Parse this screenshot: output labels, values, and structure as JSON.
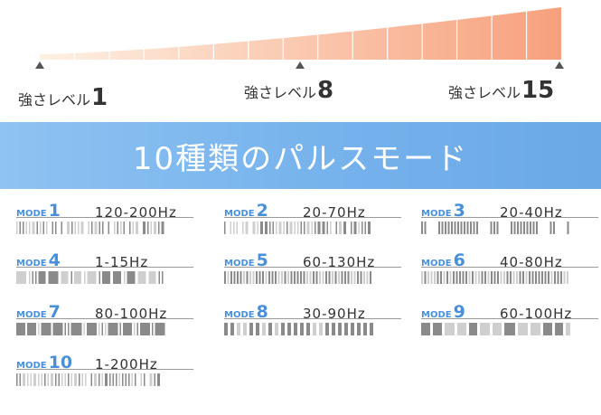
{
  "intensity": {
    "levels": [
      {
        "prefix": "強さレベル",
        "number": "1"
      },
      {
        "prefix": "強さレベル",
        "number": "8"
      },
      {
        "prefix": "強さレベル",
        "number": "15"
      }
    ],
    "max_level": 15,
    "colors": {
      "start": "#fdf1e3",
      "end": "#f7a07c",
      "marker": "#555555"
    }
  },
  "banner": {
    "title": "10種類のパルスモード"
  },
  "modes": [
    {
      "label": "MODE",
      "number": "1",
      "freq": "120-200Hz",
      "pattern": "fine-mixed"
    },
    {
      "label": "MODE",
      "number": "2",
      "freq": "20-70Hz",
      "pattern": "fine-mixed"
    },
    {
      "label": "MODE",
      "number": "3",
      "freq": "20-40Hz",
      "pattern": "dense-groups"
    },
    {
      "label": "MODE",
      "number": "4",
      "freq": "1-15Hz",
      "pattern": "blocks"
    },
    {
      "label": "MODE",
      "number": "5",
      "freq": "60-130Hz",
      "pattern": "dense-uniform"
    },
    {
      "label": "MODE",
      "number": "6",
      "freq": "40-80Hz",
      "pattern": "dense-uniform"
    },
    {
      "label": "MODE",
      "number": "7",
      "freq": "80-100Hz",
      "pattern": "blocks-fine"
    },
    {
      "label": "MODE",
      "number": "8",
      "freq": "30-90Hz",
      "pattern": "regular"
    },
    {
      "label": "MODE",
      "number": "9",
      "freq": "60-100Hz",
      "pattern": "wide-blocks"
    },
    {
      "label": "MODE",
      "number": "10",
      "freq": "1-200Hz",
      "pattern": "fine-mixed"
    }
  ],
  "colors": {
    "mode_label": "#4a90d9",
    "bar_dark": "#8a8a8a",
    "bar_light": "#cfcfcf"
  }
}
